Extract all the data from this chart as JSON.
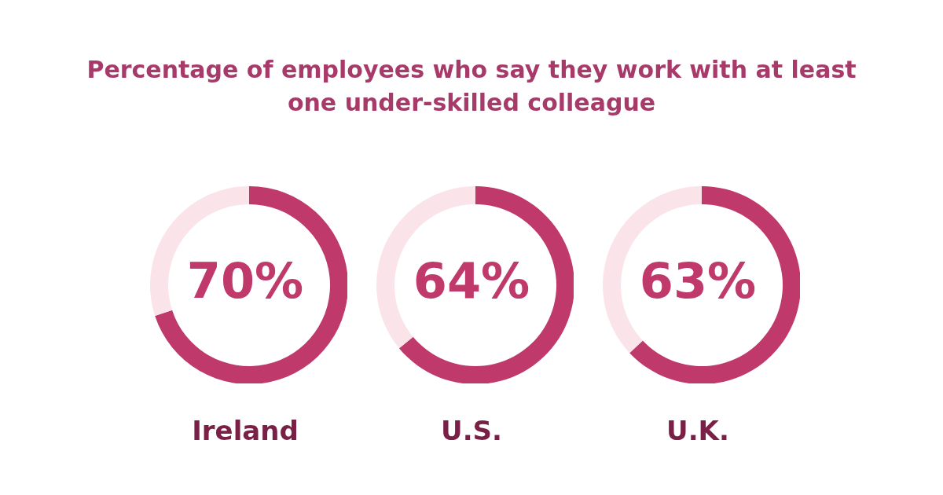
{
  "chart_data": [
    {
      "type": "other",
      "title": "Percentage of employees who say they work with at least one under-skilled colleague"
    },
    {
      "type": "donut",
      "xlabel": "Ireland",
      "categories": [
        null,
        null
      ],
      "values": [
        70,
        30
      ],
      "colors": [
        "#c0396b",
        "#fbe3ea"
      ],
      "annotations": [
        "70%"
      ]
    },
    {
      "type": "donut",
      "xlabel": "U.S.",
      "categories": [
        null,
        null
      ],
      "values": [
        64,
        36
      ],
      "colors": [
        "#c0396b",
        "#fbe3ea"
      ],
      "annotations": [
        "64%"
      ]
    },
    {
      "type": "donut",
      "xlabel": "U.K.",
      "categories": [
        null,
        null
      ],
      "values": [
        63,
        37
      ],
      "colors": [
        "#c0396b",
        "#fbe3ea"
      ],
      "annotations": [
        "63%"
      ]
    }
  ]
}
